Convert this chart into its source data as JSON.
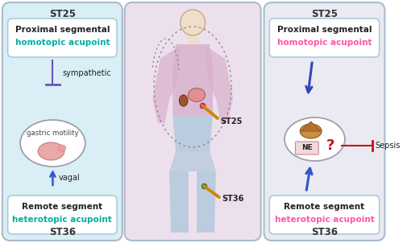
{
  "bg_color": "#ffffff",
  "left_panel_bg": "#daeef5",
  "mid_panel_bg": "#ede0ed",
  "right_panel_bg": "#eaeaf2",
  "box_bg": "#ffffff",
  "box_border": "#aaccdd",
  "panel_border": "#aabbcc",
  "title_color": "#333333",
  "proximal_line1": "Proximal segmental",
  "proximal_line2_left": "homotopic acupoint",
  "proximal_line2_right": "homotopic acupoint",
  "proximal_color_left": "#00b0a0",
  "proximal_color_right": "#ff55aa",
  "remote_line1": "Remote segment",
  "remote_line2_left": "heterotopic acupoint",
  "remote_line2_right": "heterotopic acupoint",
  "remote_color_left": "#00b0a0",
  "remote_color_right": "#ff55aa",
  "sympathetic_label": "sympathetic",
  "vagal_label": "vagal",
  "gastric_label": "gastric motility",
  "sepsis_label": "Sepsis",
  "question_label": "?",
  "ne_label": "NE",
  "suppress_arrow_color": "#6655bb",
  "vagal_arrow_color": "#3355cc",
  "right_top_arrow_color": "#3344bb",
  "right_bot_arrow_color": "#3355cc",
  "sepsis_inhibit_color": "#cc1111",
  "stomach_fill": "#e8a0a0",
  "ellipse_edge": "#9999aa",
  "head_fill": "#f0dfc8",
  "body_upper_fill": "#d8b0cc",
  "body_lower_fill": "#b0c8dc",
  "body_arm_fill": "#cdb8dc",
  "needle_color": "#cc8800",
  "st25_dot_color": "#cc1188",
  "st36_dot_color": "#228855",
  "adrenal_fill": "#c89040",
  "ne_box_fill": "#f0d8dc",
  "ne_box_edge": "#cc8888"
}
